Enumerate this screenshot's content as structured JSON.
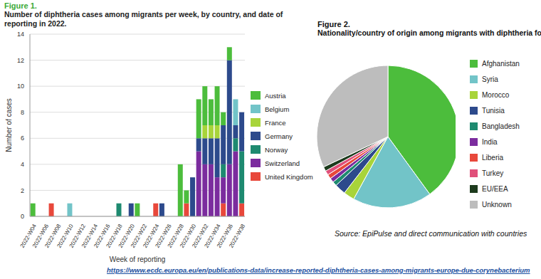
{
  "chart_data": [
    {
      "type": "bar",
      "figure_label": "Figure 1.",
      "title": "Number of diphtheria cases among migrants per week, by country, and date of reporting in 2022.",
      "x_label": "Week of reporting",
      "y_label": "Number of cases",
      "categories": [
        "2022-W04",
        null,
        "2022-W06",
        null,
        "2022-W08",
        null,
        "2022-W10",
        null,
        "2022-W12",
        null,
        "2022-W14",
        null,
        "2022-W16",
        null,
        "2022-W18",
        null,
        "2022-W20",
        null,
        "2022-W22",
        null,
        "2022-W24",
        null,
        "2022-W26",
        null,
        "2022-W28",
        null,
        "2022-W30",
        null,
        "2022-W32",
        null,
        "2022-W34",
        null,
        "2022-W36",
        null,
        "2022-W38"
      ],
      "series": [
        {
          "name": "Austria",
          "color": "#4cbd3c",
          "values": [
            1,
            0,
            0,
            0,
            0,
            0,
            0,
            0,
            0,
            0,
            0,
            0,
            0,
            0,
            0,
            0,
            0,
            1,
            0,
            0,
            0,
            0,
            0,
            0,
            4,
            1,
            0,
            3,
            3,
            2,
            3,
            1,
            1,
            0,
            0
          ]
        },
        {
          "name": "Belgium",
          "color": "#72c4c8",
          "values": [
            0,
            0,
            0,
            0,
            0,
            0,
            1,
            0,
            0,
            0,
            0,
            0,
            0,
            0,
            0,
            0,
            0,
            0,
            0,
            0,
            0,
            0,
            0,
            0,
            0,
            0,
            0,
            0,
            0,
            0,
            0,
            0,
            0,
            2,
            0
          ]
        },
        {
          "name": "France",
          "color": "#a8d43a",
          "values": [
            0,
            0,
            0,
            0,
            0,
            0,
            0,
            0,
            0,
            0,
            0,
            0,
            0,
            0,
            0,
            0,
            0,
            0,
            0,
            0,
            0,
            0,
            0,
            0,
            0,
            0,
            0,
            0,
            1,
            1,
            1,
            0,
            0,
            0,
            0
          ]
        },
        {
          "name": "Germany",
          "color": "#2d4a8c",
          "values": [
            0,
            0,
            0,
            0,
            0,
            0,
            0,
            0,
            0,
            0,
            0,
            0,
            0,
            0,
            0,
            0,
            1,
            0,
            0,
            0,
            0,
            1,
            0,
            0,
            0,
            0,
            3,
            1,
            2,
            2,
            3,
            3,
            8,
            1,
            3
          ]
        },
        {
          "name": "Norway",
          "color": "#1e8a70",
          "values": [
            0,
            0,
            0,
            0,
            0,
            0,
            0,
            0,
            0,
            0,
            0,
            0,
            0,
            0,
            1,
            0,
            0,
            0,
            0,
            0,
            0,
            0,
            0,
            0,
            0,
            0,
            0,
            0,
            0,
            0,
            0,
            1,
            0,
            1,
            4
          ]
        },
        {
          "name": "Switzerland",
          "color": "#7b2c9e",
          "values": [
            0,
            0,
            0,
            0,
            0,
            0,
            0,
            0,
            0,
            0,
            0,
            0,
            0,
            0,
            0,
            0,
            0,
            0,
            0,
            0,
            0,
            0,
            0,
            0,
            0,
            0,
            0,
            5,
            4,
            4,
            3,
            2,
            4,
            5,
            0
          ]
        },
        {
          "name": "United Kingdom",
          "color": "#e8483b",
          "values": [
            0,
            0,
            0,
            1,
            0,
            0,
            0,
            0,
            0,
            0,
            0,
            0,
            0,
            0,
            0,
            0,
            0,
            0,
            0,
            0,
            1,
            0,
            0,
            0,
            0,
            1,
            0,
            0,
            0,
            0,
            0,
            1,
            0,
            0,
            1
          ]
        }
      ],
      "ylim": [
        0,
        14
      ],
      "yticks": [
        0,
        2,
        4,
        6,
        8,
        10,
        12,
        14
      ],
      "stacked": true,
      "grid": true,
      "legend": "right"
    },
    {
      "type": "pie",
      "figure_label": "Figure 2.",
      "title": "Nationality/country of origin among migrants with diphtheria for cases rep",
      "categories": [
        "Afghanistan",
        "Syria",
        "Morocco",
        "Tunisia",
        "Bangladesh",
        "India",
        "Liberia",
        "Turkey",
        "EU/EEA",
        "Unknown"
      ],
      "values": [
        40,
        18,
        2.5,
        2.5,
        1,
        1,
        1,
        1,
        1,
        32
      ],
      "colors": [
        "#4cbd3c",
        "#72c4c8",
        "#a8d43a",
        "#2d4a8c",
        "#1e8a70",
        "#7b2c9e",
        "#e8483b",
        "#e0507a",
        "#1d3b1d",
        "#bdbdbd"
      ],
      "legend": "right",
      "source": "Source: EpiPulse and direct communication with countries"
    }
  ],
  "url": "https://www.ecdc.europa.eu/en/publications-data/increase-reported-diphtheria-cases-among-migrants-europe-due-corynebacterium"
}
